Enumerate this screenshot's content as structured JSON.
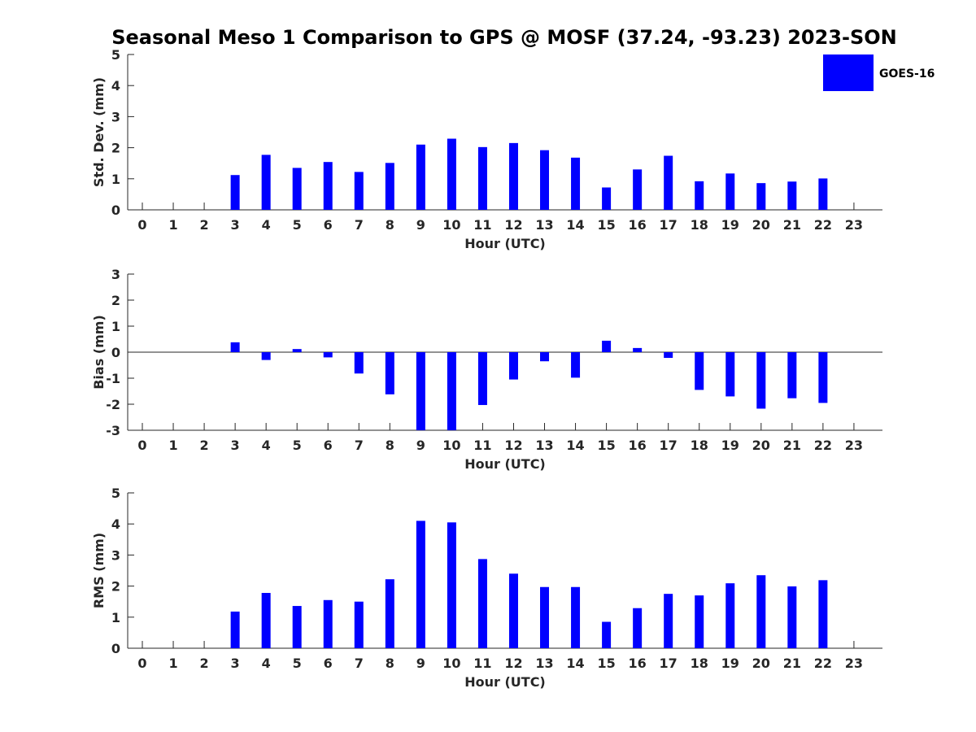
{
  "figure": {
    "title": "Seasonal Meso 1 Comparison to GPS @ MOSF (37.24, -93.23) 2023-SON"
  },
  "legend": {
    "label": "GOES-16",
    "color": "#0000ff"
  },
  "chart_data": [
    {
      "type": "bar",
      "id": "std",
      "title": "",
      "xlabel": "Hour (UTC)",
      "ylabel": "Std. Dev. (mm)",
      "ylim": [
        0,
        5
      ],
      "yticks": [
        0,
        1,
        2,
        3,
        4,
        5
      ],
      "categories": [
        "0",
        "1",
        "2",
        "3",
        "4",
        "5",
        "6",
        "7",
        "8",
        "9",
        "10",
        "11",
        "12",
        "13",
        "14",
        "15",
        "16",
        "17",
        "18",
        "19",
        "20",
        "21",
        "22",
        "23"
      ],
      "series": [
        {
          "name": "GOES-16",
          "color": "#0000ff",
          "values": [
            null,
            null,
            null,
            1.12,
            1.77,
            1.35,
            1.54,
            1.22,
            1.51,
            2.1,
            2.29,
            2.02,
            2.15,
            1.92,
            1.68,
            0.72,
            1.3,
            1.74,
            0.92,
            1.17,
            0.86,
            0.91,
            1.01,
            null
          ]
        }
      ]
    },
    {
      "type": "bar",
      "id": "bias",
      "title": "",
      "xlabel": "Hour (UTC)",
      "ylabel": "Bias (mm)",
      "ylim": [
        -3,
        3
      ],
      "yticks": [
        -3,
        -2,
        -1,
        0,
        1,
        2,
        3
      ],
      "zero_line": true,
      "categories": [
        "0",
        "1",
        "2",
        "3",
        "4",
        "5",
        "6",
        "7",
        "8",
        "9",
        "10",
        "11",
        "12",
        "13",
        "14",
        "15",
        "16",
        "17",
        "18",
        "19",
        "20",
        "21",
        "22",
        "23"
      ],
      "series": [
        {
          "name": "GOES-16",
          "color": "#0000ff",
          "values": [
            null,
            null,
            null,
            0.38,
            -0.3,
            0.12,
            -0.2,
            -0.82,
            -1.62,
            -3.0,
            -3.0,
            -2.03,
            -1.05,
            -0.35,
            -0.98,
            0.44,
            0.16,
            -0.22,
            -1.45,
            -1.7,
            -2.17,
            -1.77,
            -1.95,
            null
          ]
        }
      ]
    },
    {
      "type": "bar",
      "id": "rms",
      "title": "",
      "xlabel": "Hour (UTC)",
      "ylabel": "RMS (mm)",
      "ylim": [
        0,
        5
      ],
      "yticks": [
        0,
        1,
        2,
        3,
        4,
        5
      ],
      "categories": [
        "0",
        "1",
        "2",
        "3",
        "4",
        "5",
        "6",
        "7",
        "8",
        "9",
        "10",
        "11",
        "12",
        "13",
        "14",
        "15",
        "16",
        "17",
        "18",
        "19",
        "20",
        "21",
        "22",
        "23"
      ],
      "series": [
        {
          "name": "GOES-16",
          "color": "#0000ff",
          "values": [
            null,
            null,
            null,
            1.18,
            1.78,
            1.36,
            1.55,
            1.5,
            2.22,
            4.1,
            4.05,
            2.87,
            2.4,
            1.97,
            1.97,
            0.85,
            1.29,
            1.75,
            1.7,
            2.09,
            2.35,
            1.99,
            2.19,
            null
          ]
        }
      ]
    }
  ]
}
